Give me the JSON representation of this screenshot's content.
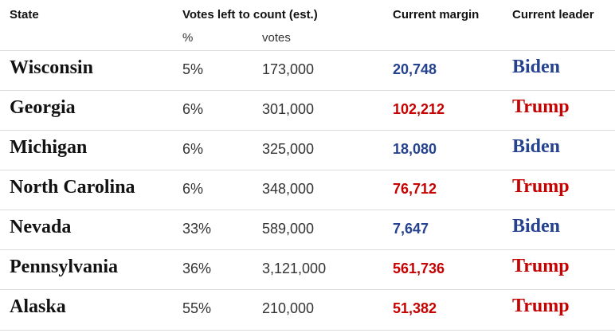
{
  "headers": {
    "state": "State",
    "votes_left": "Votes left to count (est.)",
    "margin": "Current margin",
    "leader": "Current leader"
  },
  "subheaders": {
    "pct": "%",
    "votes": "votes"
  },
  "colors": {
    "biden": "#25428f",
    "trump": "#c70000"
  },
  "rows": [
    {
      "state": "Wisconsin",
      "pct": "5%",
      "votes": "173,000",
      "margin": "20,748",
      "leader": "Biden",
      "party": "dem"
    },
    {
      "state": "Georgia",
      "pct": "6%",
      "votes": "301,000",
      "margin": "102,212",
      "leader": "Trump",
      "party": "rep"
    },
    {
      "state": "Michigan",
      "pct": "6%",
      "votes": "325,000",
      "margin": "18,080",
      "leader": "Biden",
      "party": "dem"
    },
    {
      "state": "North Carolina",
      "pct": "6%",
      "votes": "348,000",
      "margin": "76,712",
      "leader": "Trump",
      "party": "rep"
    },
    {
      "state": "Nevada",
      "pct": "33%",
      "votes": "589,000",
      "margin": "7,647",
      "leader": "Biden",
      "party": "dem"
    },
    {
      "state": "Pennsylvania",
      "pct": "36%",
      "votes": "3,121,000",
      "margin": "561,736",
      "leader": "Trump",
      "party": "rep"
    },
    {
      "state": "Alaska",
      "pct": "55%",
      "votes": "210,000",
      "margin": "51,382",
      "leader": "Trump",
      "party": "rep"
    }
  ]
}
